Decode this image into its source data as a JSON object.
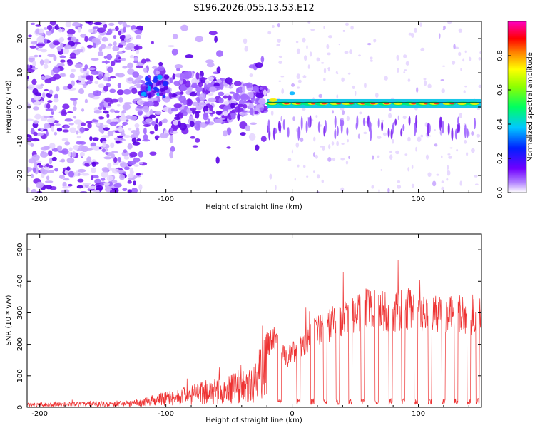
{
  "title": "S196.2026.055.13.53.E12",
  "chart_data": [
    {
      "type": "heatmap",
      "name": "spectrogram",
      "xlabel": "Height of straight line (km)",
      "ylabel": "Frequency (Hz)",
      "xlim": [
        -210,
        150
      ],
      "ylim": [
        -25,
        25
      ],
      "xticks": [
        -200,
        -100,
        0,
        100
      ],
      "yticks": [
        -20,
        -10,
        0,
        10,
        20
      ],
      "line_frequency_hz": 1,
      "colorbar": {
        "label": "Normalized spectral amplitude",
        "range": [
          0.0,
          1.0
        ],
        "ticks": [
          0.0,
          0.2,
          0.4,
          0.6,
          0.8
        ]
      }
    },
    {
      "type": "line",
      "name": "snr",
      "xlabel": "Height of straight line (km)",
      "ylabel": "SNR (10 * v/v)",
      "xlim": [
        -210,
        150
      ],
      "ylim": [
        0,
        550
      ],
      "xticks": [
        -200,
        -100,
        0,
        100
      ],
      "yticks": [
        0,
        100,
        200,
        300,
        400,
        500
      ],
      "color": "#ee3333",
      "series": [
        {
          "name": "SNR",
          "envelope": {
            "x": [
              -210,
              -130,
              -120,
              -110,
              -100,
              -90,
              -80,
              -70,
              -60,
              -50,
              -40,
              -30,
              -25,
              -20,
              -15,
              -10,
              -5,
              0,
              10,
              20,
              30,
              40,
              50,
              60,
              70,
              80,
              90,
              100,
              110,
              120,
              130,
              140,
              150
            ],
            "y": [
              15,
              20,
              25,
              40,
              50,
              60,
              70,
              85,
              95,
              100,
              120,
              150,
              200,
              240,
              260,
              230,
              190,
              210,
              250,
              300,
              320,
              330,
              360,
              380,
              370,
              360,
              380,
              370,
              360,
              350,
              360,
              345,
              350
            ]
          },
          "dropouts_x": [
            -10,
            5,
            16,
            26,
            36,
            46,
            56,
            67,
            78,
            88,
            98,
            109,
            120,
            130,
            140,
            147
          ]
        }
      ]
    }
  ]
}
